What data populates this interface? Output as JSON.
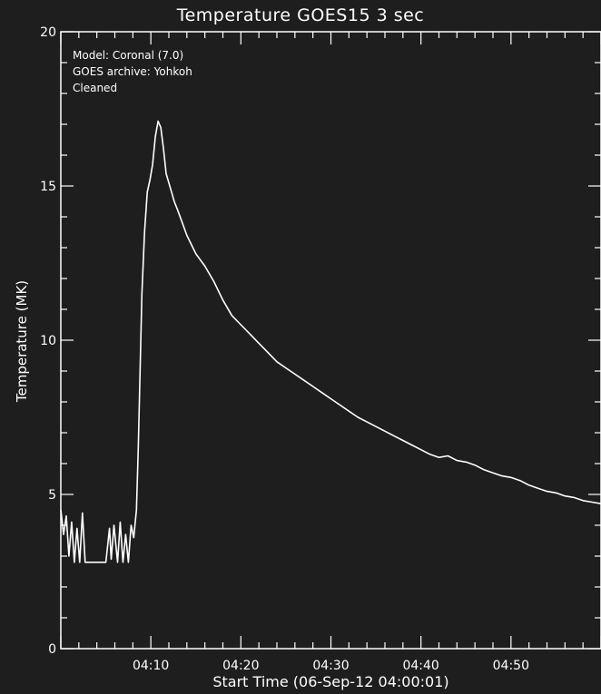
{
  "chart_data": {
    "type": "line",
    "title": "Temperature  GOES15 3 sec",
    "xlabel": "Start Time (06-Sep-12 04:00:01)",
    "ylabel": "Temperature (MK)",
    "annotations": [
      "Model: Coronal (7.0)",
      "GOES archive: Yohkoh",
      "Cleaned"
    ],
    "xlim_minutes": [
      0,
      60
    ],
    "ylim": [
      0,
      20
    ],
    "x_ticks": [
      {
        "minutes": 10,
        "label": "04:10"
      },
      {
        "minutes": 20,
        "label": "04:20"
      },
      {
        "minutes": 30,
        "label": "04:30"
      },
      {
        "minutes": 40,
        "label": "04:40"
      },
      {
        "minutes": 50,
        "label": "04:50"
      }
    ],
    "y_ticks": [
      0,
      5,
      10,
      15,
      20
    ],
    "grid": false,
    "series": [
      {
        "x_minutes": [
          0.0,
          0.3,
          0.6,
          0.9,
          1.2,
          1.5,
          1.8,
          2.1,
          2.4,
          2.7,
          3.0,
          3.3,
          3.6,
          4.0,
          4.5,
          5.0,
          5.4,
          5.6,
          5.9,
          6.3,
          6.6,
          6.9,
          7.2,
          7.5,
          7.8,
          8.1,
          8.4,
          8.6,
          8.8,
          9.0,
          9.3,
          9.6,
          9.9,
          10.2,
          10.5,
          10.8,
          11.1,
          11.4,
          11.7,
          12.0,
          12.3,
          12.6,
          13.0,
          13.5,
          14.0,
          14.5,
          15.0,
          16.0,
          17.0,
          18.0,
          19.0,
          20.0,
          21.0,
          22.0,
          23.0,
          24.0,
          25.0,
          26.0,
          27.0,
          28.0,
          29.0,
          30.0,
          31.0,
          32.0,
          33.0,
          34.0,
          35.0,
          36.0,
          37.0,
          38.0,
          39.0,
          40.0,
          41.0,
          42.0,
          43.0,
          44.0,
          45.0,
          46.0,
          47.0,
          48.0,
          49.0,
          50.0,
          51.0,
          52.0,
          53.0,
          54.0,
          55.0,
          56.0,
          57.0,
          58.0,
          59.0,
          60.0
        ],
        "values": [
          4.5,
          3.7,
          4.3,
          3.0,
          4.1,
          2.8,
          3.9,
          2.8,
          4.4,
          2.8,
          2.8,
          2.8,
          2.8,
          2.8,
          2.8,
          2.8,
          3.9,
          2.9,
          4.0,
          2.8,
          4.1,
          2.8,
          3.7,
          2.8,
          4.0,
          3.6,
          4.5,
          6.5,
          9.0,
          11.5,
          13.5,
          14.8,
          15.2,
          15.7,
          16.6,
          17.1,
          16.9,
          16.2,
          15.4,
          15.1,
          14.8,
          14.5,
          14.2,
          13.8,
          13.4,
          13.1,
          12.8,
          12.4,
          11.9,
          11.3,
          10.8,
          10.5,
          10.2,
          9.9,
          9.6,
          9.3,
          9.1,
          8.9,
          8.7,
          8.5,
          8.3,
          8.1,
          7.9,
          7.7,
          7.5,
          7.35,
          7.2,
          7.05,
          6.9,
          6.75,
          6.6,
          6.45,
          6.3,
          6.2,
          6.25,
          6.1,
          6.05,
          5.95,
          5.8,
          5.7,
          5.6,
          5.55,
          5.45,
          5.3,
          5.2,
          5.1,
          5.05,
          4.95,
          4.9,
          4.8,
          4.75,
          4.7
        ]
      }
    ]
  }
}
